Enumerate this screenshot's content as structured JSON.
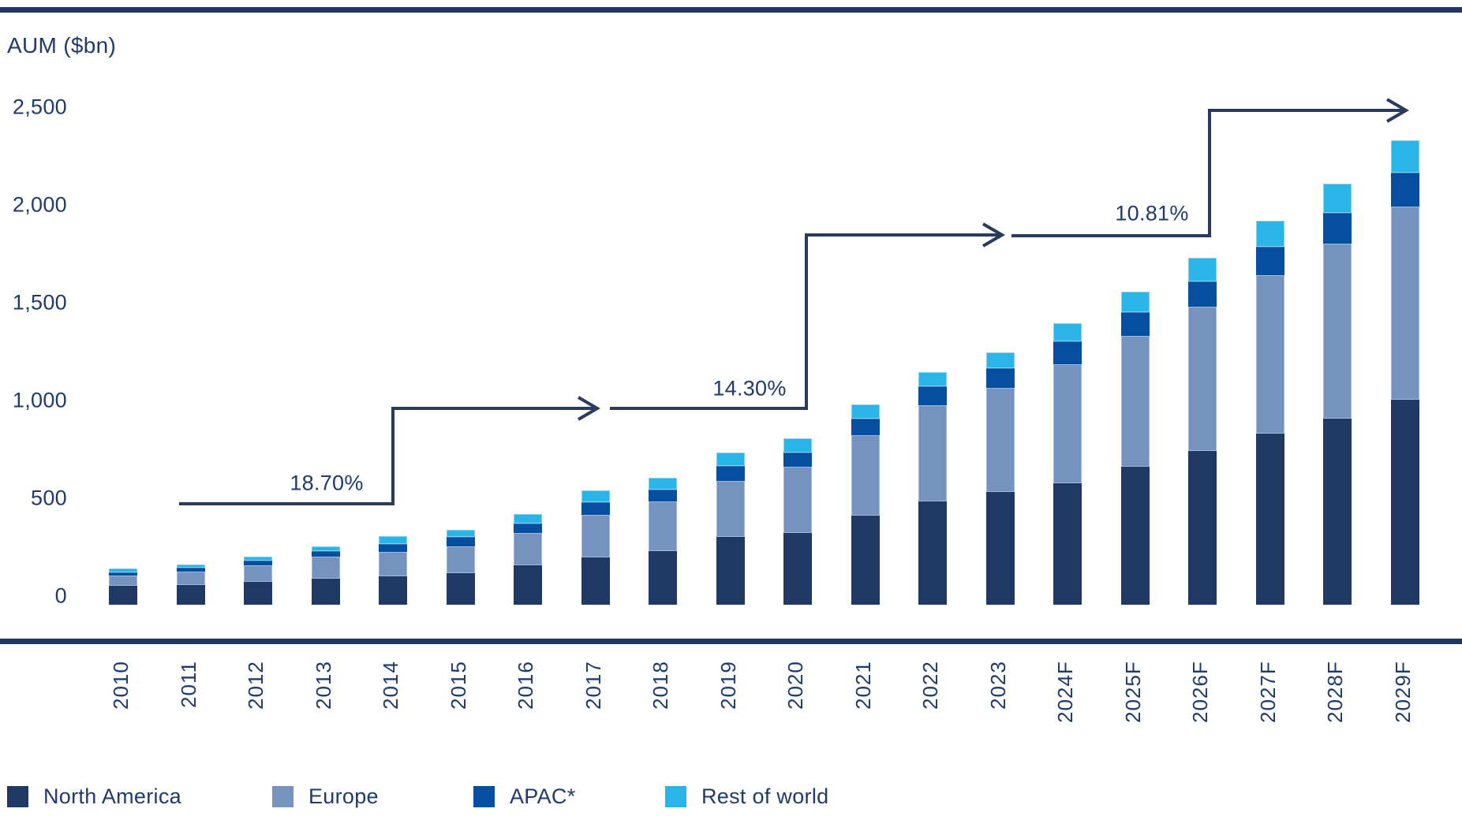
{
  "axis_title": "AUM ($bn)",
  "y_axis": {
    "ticks": [
      {
        "label": "2,500",
        "value": 2500
      },
      {
        "label": "2,000",
        "value": 2000
      },
      {
        "label": "1,500",
        "value": 1500
      },
      {
        "label": "1,000",
        "value": 1000
      },
      {
        "label": "500",
        "value": 500
      },
      {
        "label": "0",
        "value": 0
      }
    ],
    "max": 2500
  },
  "annotations": [
    {
      "label": "18.70%"
    },
    {
      "label": "14.30%"
    },
    {
      "label": "10.81%"
    }
  ],
  "legend": {
    "items": [
      {
        "label": "North America",
        "color": "#1f3864",
        "x": 9
      },
      {
        "label": "Europe",
        "color": "#7593be",
        "x": 345
      },
      {
        "label": "APAC*",
        "color": "#054f9e",
        "x": 600
      },
      {
        "label": "Rest of world",
        "color": "#29b5e8",
        "x": 843
      }
    ]
  },
  "chart_data": {
    "type": "bar",
    "stacked": true,
    "title": "",
    "xlabel": "",
    "ylabel": "AUM ($bn)",
    "ylim": [
      0,
      2500
    ],
    "y_tick_step": 500,
    "grid": false,
    "legend_position": "bottom",
    "categories": [
      "2010",
      "2011",
      "2012",
      "2013",
      "2014",
      "2015",
      "2016",
      "2017",
      "2018",
      "2019",
      "2020",
      "2021",
      "2022",
      "2023",
      "2024F",
      "2025F",
      "2026F",
      "2027F",
      "2028F",
      "2029F"
    ],
    "series": [
      {
        "name": "North America",
        "color": "#1f3864",
        "values": [
          95,
          100,
          115,
          135,
          145,
          160,
          200,
          240,
          275,
          345,
          365,
          455,
          530,
          575,
          620,
          705,
          785,
          875,
          950,
          1050
        ]
      },
      {
        "name": "Europe",
        "color": "#7593be",
        "values": [
          55,
          70,
          85,
          110,
          125,
          140,
          165,
          220,
          255,
          290,
          340,
          410,
          490,
          535,
          610,
          670,
          740,
          810,
          895,
          985
        ]
      },
      {
        "name": "APAC*",
        "color": "#054f9e",
        "values": [
          15,
          20,
          25,
          30,
          40,
          45,
          50,
          65,
          60,
          75,
          75,
          85,
          95,
          100,
          115,
          120,
          130,
          145,
          160,
          175
        ]
      },
      {
        "name": "Rest of world",
        "color": "#29b5e8",
        "values": [
          20,
          15,
          20,
          25,
          40,
          40,
          50,
          60,
          60,
          70,
          70,
          75,
          75,
          80,
          95,
          105,
          120,
          135,
          150,
          165
        ]
      }
    ],
    "totals": [
      185,
      205,
      245,
      300,
      350,
      385,
      465,
      585,
      650,
      780,
      850,
      1025,
      1190,
      1290,
      1440,
      1600,
      1775,
      1965,
      2155,
      2375
    ],
    "cagr_annotations": [
      {
        "label": "18.70%",
        "period_start": "2010",
        "period_end": "2017"
      },
      {
        "label": "14.30%",
        "period_start": "2017",
        "period_end": "2023"
      },
      {
        "label": "10.81%",
        "period_start": "2023",
        "period_end": "2029F"
      }
    ]
  }
}
